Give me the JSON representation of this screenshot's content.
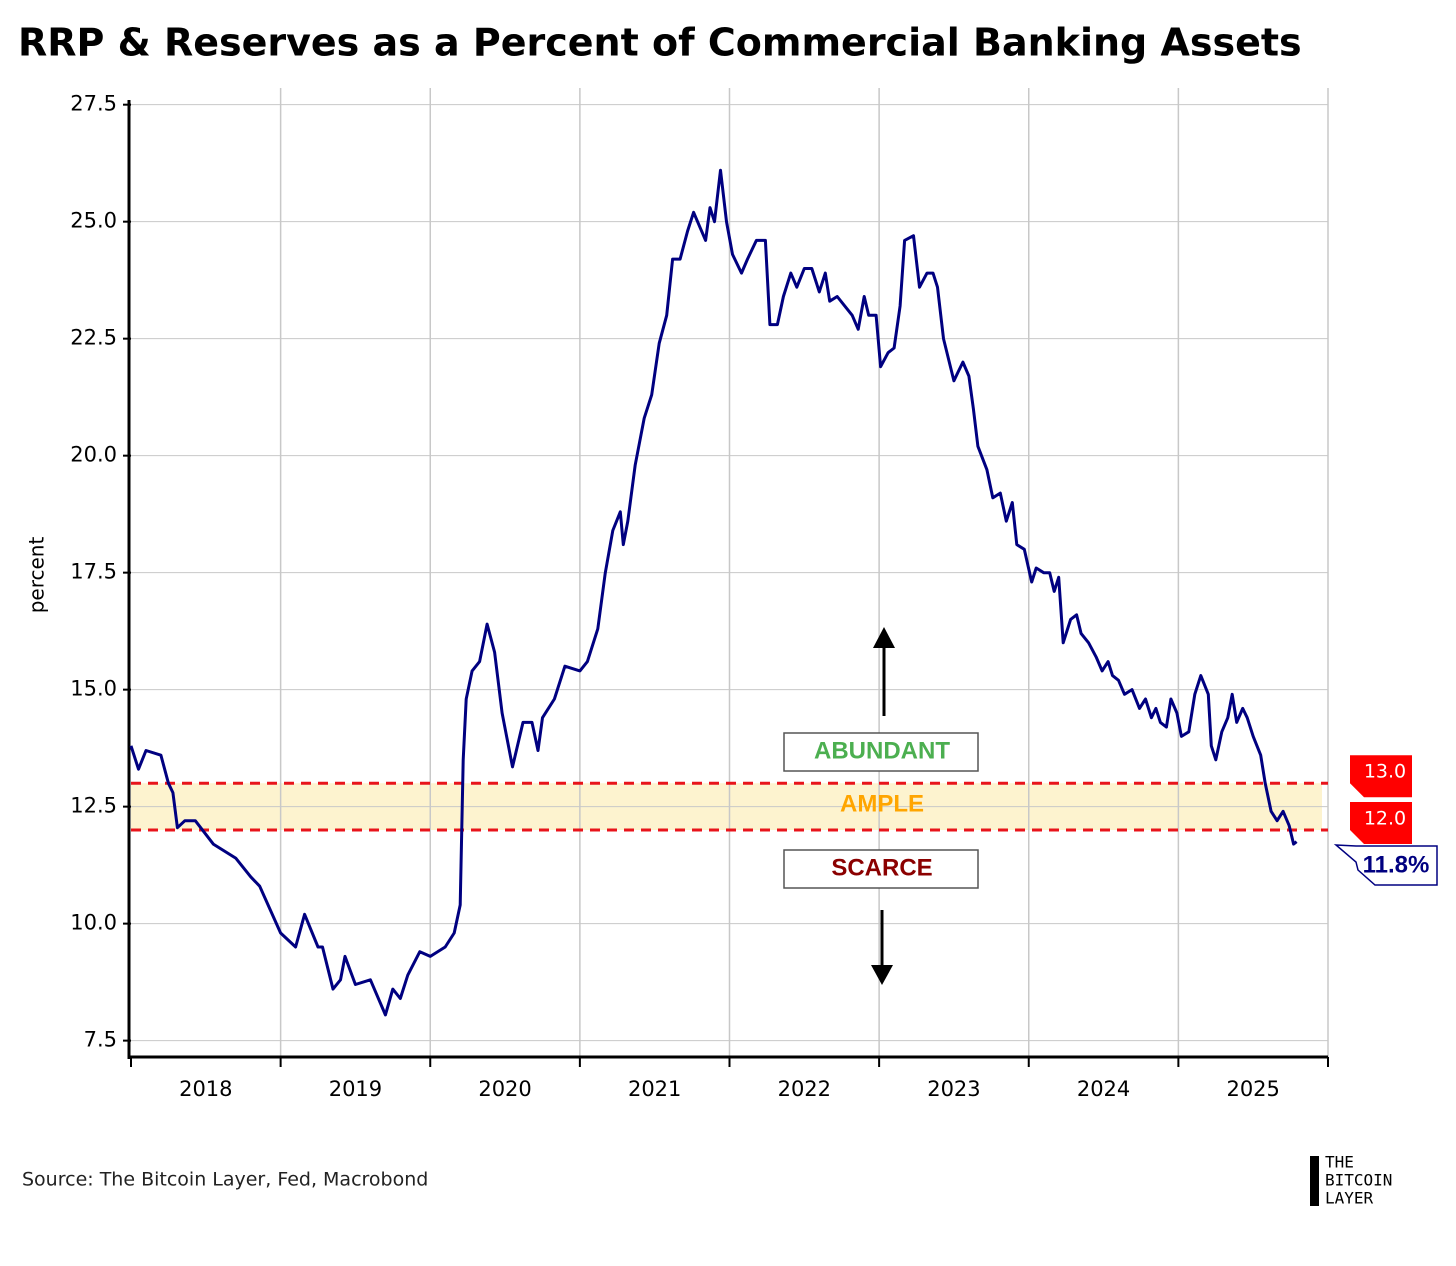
{
  "chart_data": {
    "type": "line",
    "title": "RRP & Reserves as a Percent of Commercial Banking Assets",
    "y_label": "percent",
    "source": "Source: The Bitcoin Layer, Fed, Macrobond",
    "logo": [
      "THE",
      "BITCOIN",
      "LAYER"
    ],
    "xlim": [
      2018,
      2026
    ],
    "xticks": [
      {
        "value": 2018.5,
        "label": "2018"
      },
      {
        "value": 2019.5,
        "label": "2019"
      },
      {
        "value": 2020.5,
        "label": "2020"
      },
      {
        "value": 2021.5,
        "label": "2021"
      },
      {
        "value": 2022.5,
        "label": "2022"
      },
      {
        "value": 2023.5,
        "label": "2023"
      },
      {
        "value": 2024.5,
        "label": "2024"
      },
      {
        "value": 2025.5,
        "label": "2025"
      }
    ],
    "ylim": [
      7.15,
      27.6
    ],
    "yticks": [
      7.5,
      {
        "value": 10,
        "label": "10.0"
      },
      12.5,
      {
        "value": 15,
        "label": "15.0"
      },
      17.5,
      {
        "value": 20,
        "label": "20.0"
      },
      22.5,
      {
        "value": 25,
        "label": "25.0"
      },
      27.5
    ],
    "grid": true,
    "x": [
      2018.0,
      2018.05,
      2018.1,
      2018.2,
      2018.25,
      2018.28,
      2018.31,
      2018.36,
      2018.43,
      2018.55,
      2018.7,
      2018.8,
      2018.86,
      2019.0,
      2019.1,
      2019.16,
      2019.25,
      2019.28,
      2019.35,
      2019.4,
      2019.43,
      2019.5,
      2019.6,
      2019.7,
      2019.75,
      2019.8,
      2019.85,
      2019.93,
      2020.0,
      2020.1,
      2020.16,
      2020.2,
      2020.22,
      2020.24,
      2020.28,
      2020.33,
      2020.38,
      2020.43,
      2020.48,
      2020.55,
      2020.62,
      2020.68,
      2020.72,
      2020.75,
      2020.83,
      2020.9,
      2021.0,
      2021.05,
      2021.12,
      2021.17,
      2021.22,
      2021.27,
      2021.29,
      2021.32,
      2021.37,
      2021.43,
      2021.48,
      2021.53,
      2021.58,
      2021.62,
      2021.67,
      2021.72,
      2021.76,
      2021.8,
      2021.84,
      2021.87,
      2021.9,
      2021.94,
      2021.98,
      2022.02,
      2022.08,
      2022.12,
      2022.18,
      2022.24,
      2022.27,
      2022.32,
      2022.36,
      2022.41,
      2022.45,
      2022.5,
      2022.55,
      2022.6,
      2022.64,
      2022.67,
      2022.72,
      2022.77,
      2022.82,
      2022.86,
      2022.9,
      2022.93,
      2022.98,
      2023.01,
      2023.06,
      2023.1,
      2023.14,
      2023.17,
      2023.23,
      2023.27,
      2023.32,
      2023.36,
      2023.39,
      2023.43,
      2023.5,
      2023.53,
      2023.56,
      2023.6,
      2023.63,
      2023.66,
      2023.72,
      2023.76,
      2023.81,
      2023.85,
      2023.89,
      2023.92,
      2023.97,
      2024.02,
      2024.05,
      2024.1,
      2024.14,
      2024.17,
      2024.2,
      2024.23,
      2024.28,
      2024.32,
      2024.35,
      2024.4,
      2024.45,
      2024.49,
      2024.53,
      2024.56,
      2024.6,
      2024.64,
      2024.69,
      2024.74,
      2024.78,
      2024.82,
      2024.85,
      2024.88,
      2024.92,
      2024.95,
      2024.99,
      2025.02,
      2025.07,
      2025.11,
      2025.15,
      2025.2,
      2025.22,
      2025.25,
      2025.29,
      2025.33,
      2025.36,
      2025.39,
      2025.43,
      2025.46,
      2025.5,
      2025.55,
      2025.58,
      2025.62,
      2025.66,
      2025.7,
      2025.74,
      2025.77,
      2025.79
    ],
    "series": [
      {
        "name": "RRP & Reserves",
        "color": "#000080",
        "values": [
          13.8,
          13.3,
          13.7,
          13.6,
          13.0,
          12.8,
          12.05,
          12.2,
          12.2,
          11.7,
          11.4,
          11.0,
          10.8,
          9.8,
          9.5,
          10.2,
          9.5,
          9.5,
          8.6,
          8.8,
          9.3,
          8.7,
          8.8,
          8.05,
          8.6,
          8.4,
          8.9,
          9.4,
          9.3,
          9.5,
          9.8,
          10.4,
          13.5,
          14.8,
          15.4,
          15.6,
          16.4,
          15.8,
          14.5,
          13.35,
          14.3,
          14.3,
          13.7,
          14.4,
          14.8,
          15.5,
          15.4,
          15.6,
          16.3,
          17.5,
          18.4,
          18.8,
          18.1,
          18.6,
          19.8,
          20.8,
          21.3,
          22.4,
          23.0,
          24.2,
          24.2,
          24.8,
          25.2,
          24.9,
          24.6,
          25.3,
          25.0,
          26.1,
          25.0,
          24.3,
          23.9,
          24.2,
          24.6,
          24.6,
          22.8,
          22.8,
          23.4,
          23.9,
          23.6,
          24.0,
          24.0,
          23.5,
          23.9,
          23.3,
          23.4,
          23.2,
          23.0,
          22.7,
          23.4,
          23.0,
          23.0,
          21.9,
          22.2,
          22.3,
          23.2,
          24.6,
          24.7,
          23.6,
          23.9,
          23.9,
          23.6,
          22.5,
          21.6,
          21.8,
          22.0,
          21.7,
          21.0,
          20.2,
          19.7,
          19.1,
          19.2,
          18.6,
          19.0,
          18.1,
          18.0,
          17.3,
          17.6,
          17.5,
          17.5,
          17.1,
          17.4,
          16.0,
          16.5,
          16.6,
          16.2,
          16.0,
          15.7,
          15.4,
          15.6,
          15.3,
          15.2,
          14.9,
          15.0,
          14.6,
          14.8,
          14.4,
          14.6,
          14.3,
          14.2,
          14.8,
          14.5,
          14.0,
          14.1,
          14.9,
          15.3,
          14.9,
          13.8,
          13.5,
          14.1,
          14.4,
          14.9,
          14.3,
          14.6,
          14.4,
          14.0,
          13.6,
          13.0,
          12.4,
          12.2,
          12.4,
          12.1,
          11.7,
          11.75
        ]
      }
    ],
    "thresholds": [
      {
        "value": 13,
        "label": "13.0"
      },
      {
        "value": 12,
        "label": "12.0"
      }
    ],
    "zones": [
      "ABUNDANT",
      "AMPLE",
      "SCARCE"
    ],
    "last_value_label": "11.8%"
  }
}
